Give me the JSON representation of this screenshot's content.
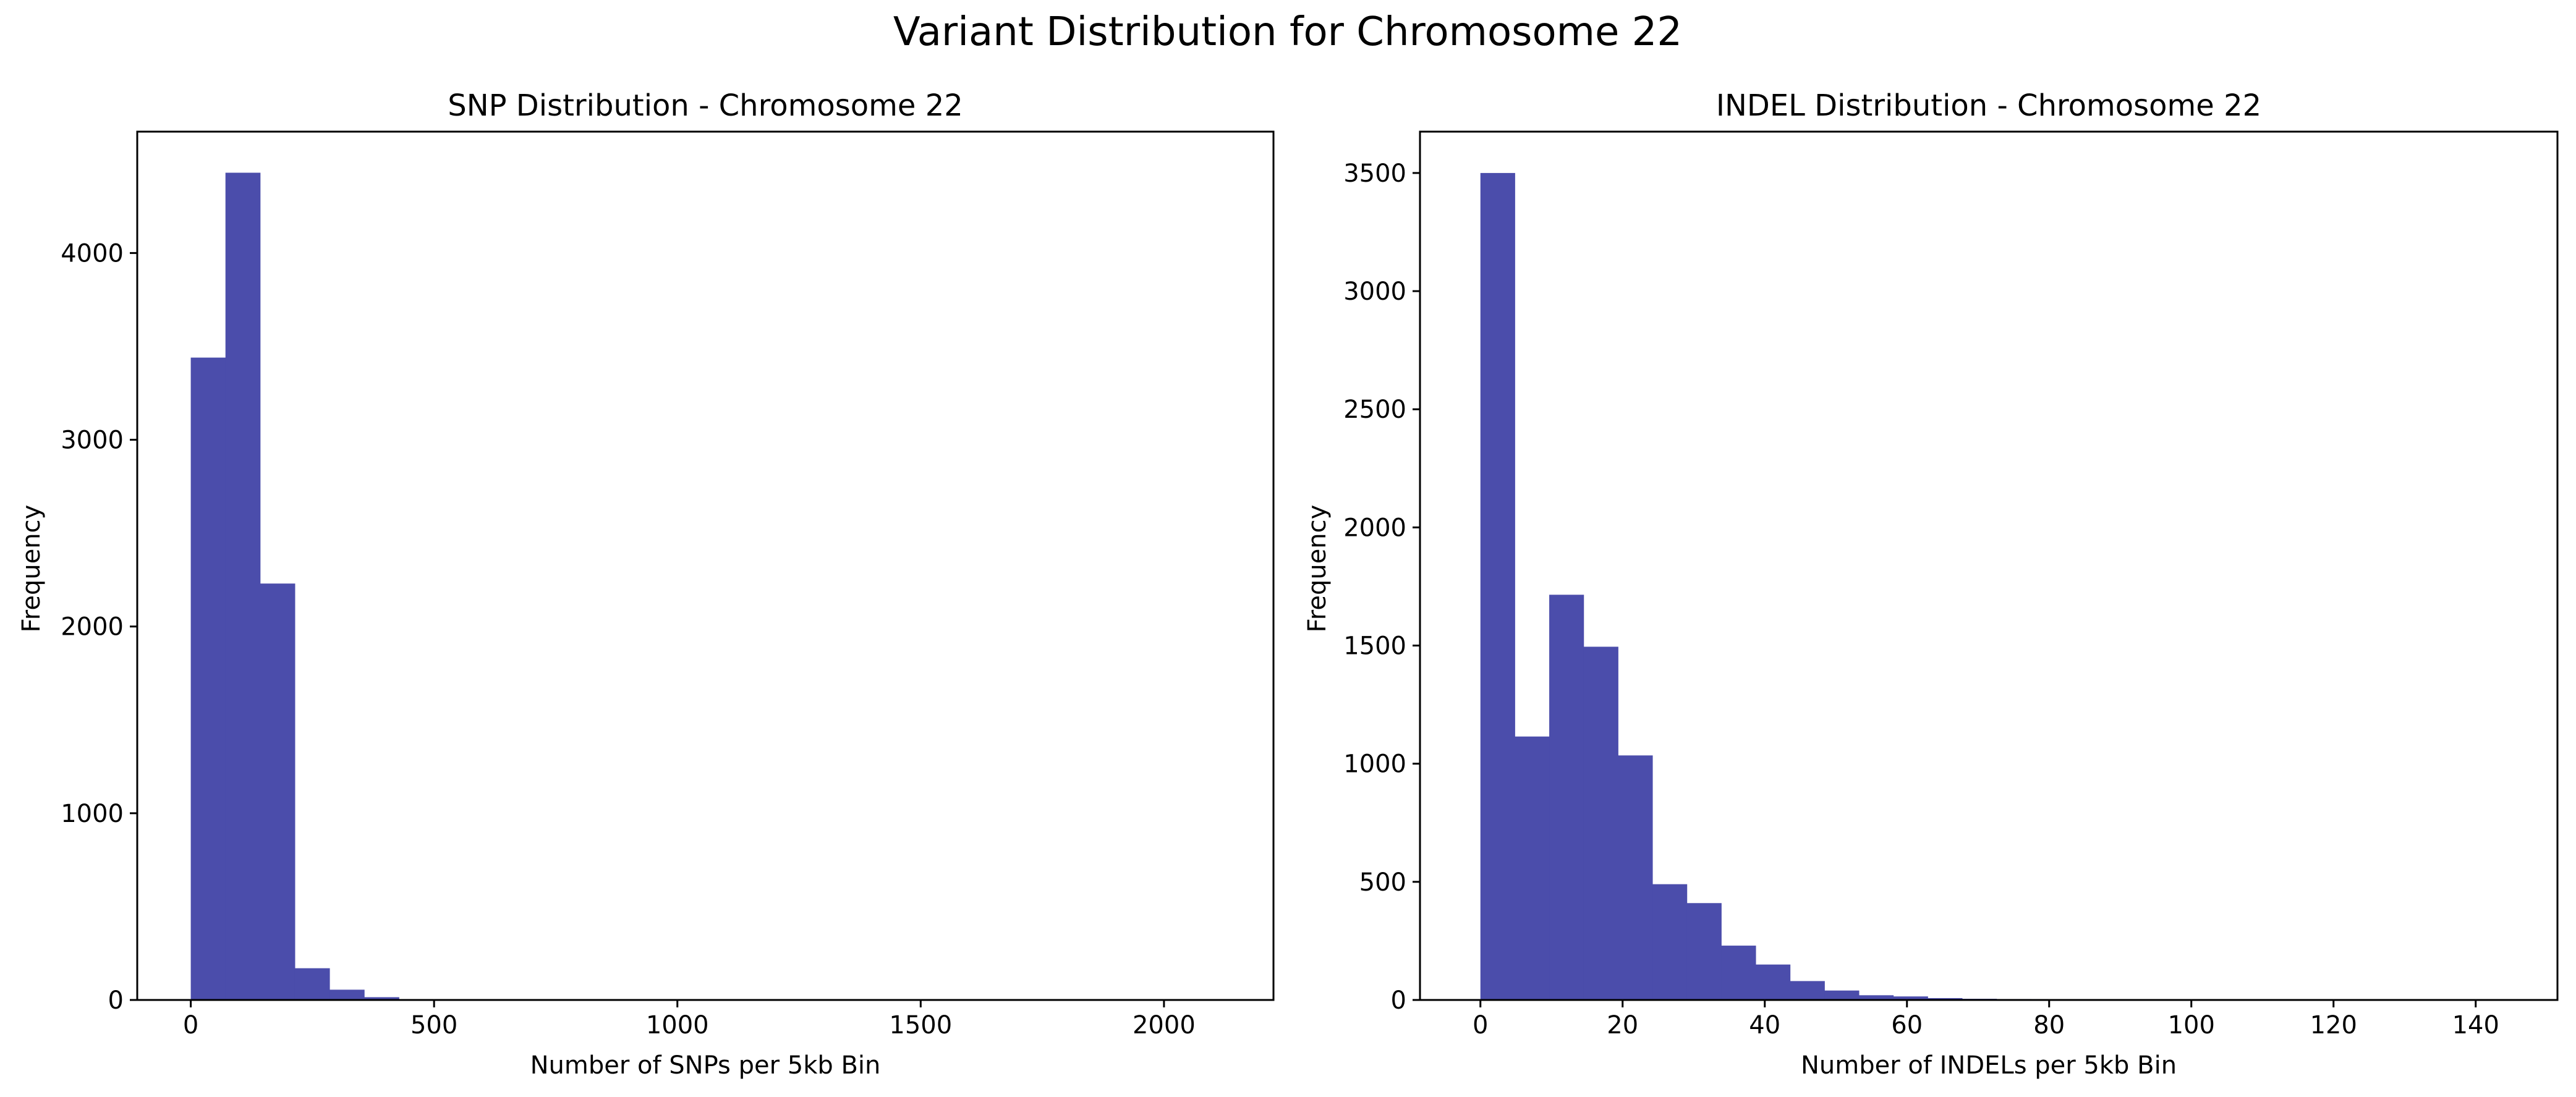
{
  "figure": {
    "suptitle": "Variant Distribution for Chromosome 22",
    "bar_color": "#4b4dab",
    "axes_color": "#000000"
  },
  "chart_data": [
    {
      "type": "bar",
      "subtype": "histogram",
      "title": "SNP Distribution - Chromosome 22",
      "xlabel": "Number of SNPs per 5kb Bin",
      "ylabel": "Frequency",
      "xlim": [
        -110,
        2225
      ],
      "ylim": [
        0,
        4650
      ],
      "xticks": [
        0,
        500,
        1000,
        1500,
        2000
      ],
      "yticks": [
        0,
        1000,
        2000,
        3000,
        4000
      ],
      "grid": false,
      "bin_edges": [
        0,
        71.3,
        142.6,
        213.9,
        285.2,
        356.5,
        427.8,
        499.1,
        570.4,
        641.7,
        713.0,
        784.3,
        855.6,
        926.9,
        998.2,
        1069.5,
        1140.8,
        1212.1,
        1283.4,
        1354.7,
        1426.0,
        1497.3,
        1568.6,
        1639.9,
        1711.2,
        1782.5,
        1853.8,
        1925.1,
        1996.4,
        2067.7,
        2139.0
      ],
      "values": [
        3440,
        4430,
        2230,
        170,
        55,
        15,
        4,
        2,
        1,
        1,
        0,
        0,
        0,
        0,
        0,
        0,
        0,
        0,
        0,
        0,
        0,
        0,
        0,
        0,
        0,
        0,
        0,
        0,
        0,
        1
      ]
    },
    {
      "type": "bar",
      "subtype": "histogram",
      "title": "INDEL Distribution - Chromosome 22",
      "xlabel": "Number of INDELs per 5kb Bin",
      "ylabel": "Frequency",
      "xlim": [
        -8.5,
        151.5
      ],
      "ylim": [
        0,
        3675
      ],
      "xticks": [
        0,
        20,
        40,
        60,
        80,
        100,
        120,
        140
      ],
      "yticks": [
        0,
        500,
        1000,
        1500,
        2000,
        2500,
        3000,
        3500
      ],
      "grid": false,
      "bin_edges": [
        0,
        4.84,
        9.68,
        14.52,
        19.36,
        24.2,
        29.04,
        33.88,
        38.72,
        43.56,
        48.4,
        53.24,
        58.08,
        62.92,
        67.76,
        72.6,
        77.44,
        82.28,
        87.12,
        91.96,
        96.8,
        101.64,
        106.48,
        111.32,
        116.16,
        121.0,
        125.84,
        130.68,
        135.52,
        140.36,
        145.2
      ],
      "values": [
        3500,
        1115,
        1715,
        1495,
        1035,
        490,
        410,
        230,
        150,
        80,
        40,
        20,
        15,
        8,
        5,
        4,
        2,
        1,
        1,
        0,
        0,
        0,
        0,
        0,
        0,
        0,
        0,
        0,
        0,
        0
      ]
    }
  ]
}
